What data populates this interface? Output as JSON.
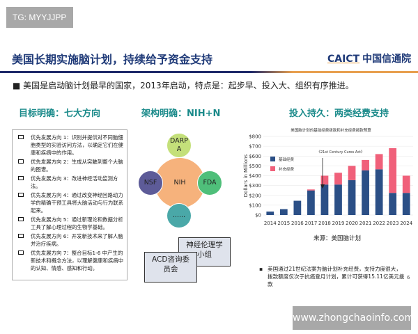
{
  "watermark_top": "TG: MYYJJPP",
  "title": "美国长期实施脑计划，持续给予资金支持",
  "logo": {
    "abbr": "CAICT",
    "name": "中国信通院"
  },
  "intro": "美国是启动脑计划最早的国家，2013年启动，特点是：起步早、投入大、组织有序推进。",
  "sections": {
    "goals": "目标明确：七大方向",
    "structure": "架构明确：NIH+N",
    "funding": "投入持久：两类经费支持"
  },
  "directions": [
    "优先发展方向 1：识别并提供对不同脑细胞类型的实验访问方法，以确定它们在健康和疾病中的作用。",
    "优先发展方向 2：生成从突触到整个大脑的图谱。",
    "优先发展方向 3：改进神经活动监测方法。",
    "优先发展方向 4：通过改变神经回路动力学的精确干预工具将大脑活动与行为联系起来。",
    "优先发展方向 5：通过新理论和数据分析工具了解心理过程的生物学基础。",
    "优先发展方向 6：开发新技术来了解人脑并治疗疾病。",
    "优先发展方向 7：整合目标1-6 中产生的新技术和概念方法，以理解健康和疾病中的认知、情感、感知和行动。"
  ],
  "org": {
    "center": "NIH",
    "top": "DARPA",
    "left": "NSF",
    "right": "FDA",
    "bottom": "......",
    "card1": "神经伦理学小组",
    "card2": "ACD咨询委员会"
  },
  "colors": {
    "base": "#2b4f86",
    "supplement": "#f0607a",
    "nih": "#f6b27c",
    "darpa": "#c4e07a",
    "nsf": "#5d5b98",
    "fda": "#4fbf7a",
    "more": "#4aa8a8"
  },
  "chart_data": {
    "type": "bar",
    "stacked": true,
    "title": "美国脑计划的基础经费拨款和补充经费拨款预算",
    "ylabel": "Dollars in Millions",
    "xlabel": "",
    "ylim": [
      0,
      800
    ],
    "yticks": [
      "$0",
      "$100",
      "$200",
      "$300",
      "$400",
      "$500",
      "$600",
      "$700",
      "$800"
    ],
    "categories": [
      "2014",
      "2015",
      "2016",
      "2017",
      "2018",
      "2019",
      "2020",
      "2021",
      "2022",
      "2023",
      "2024"
    ],
    "series": [
      {
        "name": "基础经费",
        "values": [
          35,
          60,
          145,
          250,
          310,
          310,
          355,
          455,
          465,
          225,
          225
        ]
      },
      {
        "name": "补充经费",
        "values": [
          0,
          0,
          0,
          10,
          90,
          120,
          145,
          105,
          155,
          455,
          175
        ]
      }
    ],
    "annotation": "《21st Century Cures Act》",
    "legend": "top-left"
  },
  "source": "来源：美国脑计划",
  "note": "美国通过21世纪法案为脑计划补充经费，支持力度很大，拨款额度仅次于抗癌登月计划，累计可获得15.11亿美元拨款",
  "page_number": "6",
  "watermark_bottom": "www.zhongchaoinfo.com"
}
